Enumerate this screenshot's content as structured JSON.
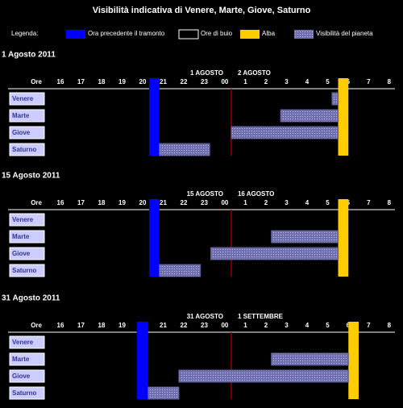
{
  "title": "Visibilità indicativa di Venere, Marte, Giove, Saturno",
  "legend": {
    "title": "Legenda:",
    "items": [
      {
        "name": "Ora precedente il tramonto",
        "color": "#0000ff"
      },
      {
        "name": "Ore di buio",
        "color": "#000000"
      },
      {
        "name": "Alba",
        "color": "#ffcc00"
      },
      {
        "name": "Visibilità del pianeta",
        "color": "#7070b0"
      }
    ]
  },
  "chart_data": [
    {
      "type": "gantt",
      "title": "1 Agosto 2011",
      "day_labels": [
        "1 AGOSTO",
        "2 AGOSTO"
      ],
      "x_label": "Ore",
      "xlim": [
        15,
        32.2
      ],
      "xticks": [
        16,
        17,
        18,
        19,
        20,
        21,
        22,
        23,
        {
          "value": 24,
          "label": "00"
        },
        {
          "value": 25,
          "label": "1"
        },
        {
          "value": 26,
          "label": "2"
        },
        {
          "value": 27,
          "label": "3"
        },
        {
          "value": 28,
          "label": "4"
        },
        {
          "value": 29,
          "label": "5"
        },
        {
          "value": 30,
          "label": "6"
        },
        {
          "value": 31,
          "label": "7"
        },
        {
          "value": 32,
          "label": "8"
        }
      ],
      "divider": 24,
      "sunset": [
        20.0,
        20.5
      ],
      "dawn": [
        29.2,
        29.7
      ],
      "categories": [
        "Venere",
        "Marte",
        "Giove",
        "Saturno"
      ],
      "starts": [
        28.9,
        26.4,
        24.0,
        20.5
      ],
      "ends": [
        29.2,
        29.2,
        29.2,
        22.95
      ]
    },
    {
      "type": "gantt",
      "title": "15 Agosto 2011",
      "day_labels": [
        "15 AGOSTO",
        "16 AGOSTO"
      ],
      "x_label": "Ore",
      "xlim": [
        15,
        32.2
      ],
      "xticks": [
        16,
        17,
        18,
        19,
        20,
        21,
        22,
        23,
        {
          "value": 24,
          "label": "00"
        },
        {
          "value": 25,
          "label": "1"
        },
        {
          "value": 26,
          "label": "2"
        },
        {
          "value": 27,
          "label": "3"
        },
        {
          "value": 28,
          "label": "4"
        },
        {
          "value": 29,
          "label": "5"
        },
        {
          "value": 30,
          "label": "6"
        },
        {
          "value": 31,
          "label": "7"
        },
        {
          "value": 32,
          "label": "8"
        }
      ],
      "divider": 24,
      "sunset": [
        20.0,
        20.5
      ],
      "dawn": [
        29.2,
        29.7
      ],
      "categories": [
        "Venere",
        "Marte",
        "Giove",
        "Saturno"
      ],
      "starts": [
        null,
        25.95,
        23.0,
        20.5
      ],
      "ends": [
        null,
        29.2,
        29.2,
        22.5
      ]
    },
    {
      "type": "gantt",
      "title": "31  Agosto 2011",
      "day_labels": [
        "31  AGOSTO",
        "1 SETTEMBRE"
      ],
      "x_label": "Ore",
      "xlim": [
        15,
        32.2
      ],
      "xticks": [
        16,
        17,
        18,
        19,
        20,
        21,
        22,
        23,
        {
          "value": 24,
          "label": "00"
        },
        {
          "value": 25,
          "label": "1"
        },
        {
          "value": 26,
          "label": "2"
        },
        {
          "value": 27,
          "label": "3"
        },
        {
          "value": 28,
          "label": "4"
        },
        {
          "value": 29,
          "label": "5"
        },
        {
          "value": 30,
          "label": "6"
        },
        {
          "value": 31,
          "label": "7"
        },
        {
          "value": 32,
          "label": "8"
        }
      ],
      "divider": 24,
      "sunset": [
        19.4,
        19.95
      ],
      "dawn": [
        29.7,
        30.2
      ],
      "categories": [
        "Venere",
        "Marte",
        "Giove",
        "Saturno"
      ],
      "starts": [
        null,
        25.95,
        21.45,
        19.95
      ],
      "ends": [
        null,
        29.7,
        29.7,
        21.45
      ]
    }
  ]
}
